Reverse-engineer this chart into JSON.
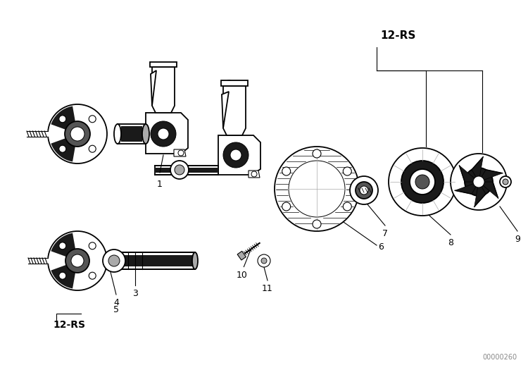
{
  "bg_color": "#ffffff",
  "line_color": "#000000",
  "gray_color": "#808080",
  "dark_color": "#1a1a1a",
  "mid_gray": "#555555",
  "light_gray": "#aaaaaa",
  "figure_width": 7.5,
  "figure_height": 5.25,
  "dpi": 100,
  "watermark": "00000260",
  "label_12rs_top": "12-RS",
  "label_12rs_bottom": "12-RS"
}
